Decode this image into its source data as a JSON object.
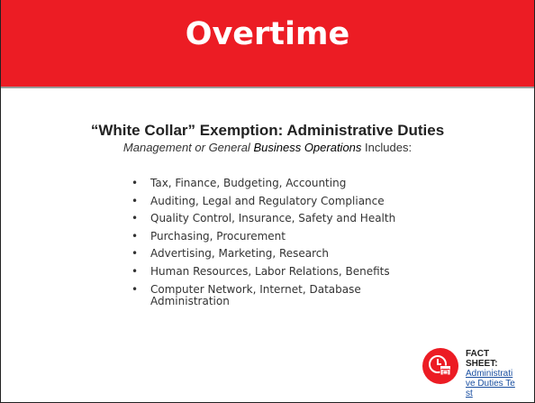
{
  "header": {
    "title": "Overtime"
  },
  "subtitle": {
    "heading": "“White Collar” Exemption: Administrative Duties",
    "line": [
      "Management or General",
      "Business Operations",
      "Includes:"
    ]
  },
  "bullets": [
    "Tax, Finance, Budgeting, Accounting",
    "Auditing, Legal and Regulatory Compliance",
    "Quality Control, Insurance, Safety and Health",
    "Purchasing, Procurement",
    "Advertising, Marketing, Research",
    "Human Resources, Labor Relations, Benefits",
    "Computer Network, Internet, Database Administration"
  ],
  "fact_sheet": {
    "label": "FACT SHEET:",
    "link": "Administrative Duties Test"
  }
}
